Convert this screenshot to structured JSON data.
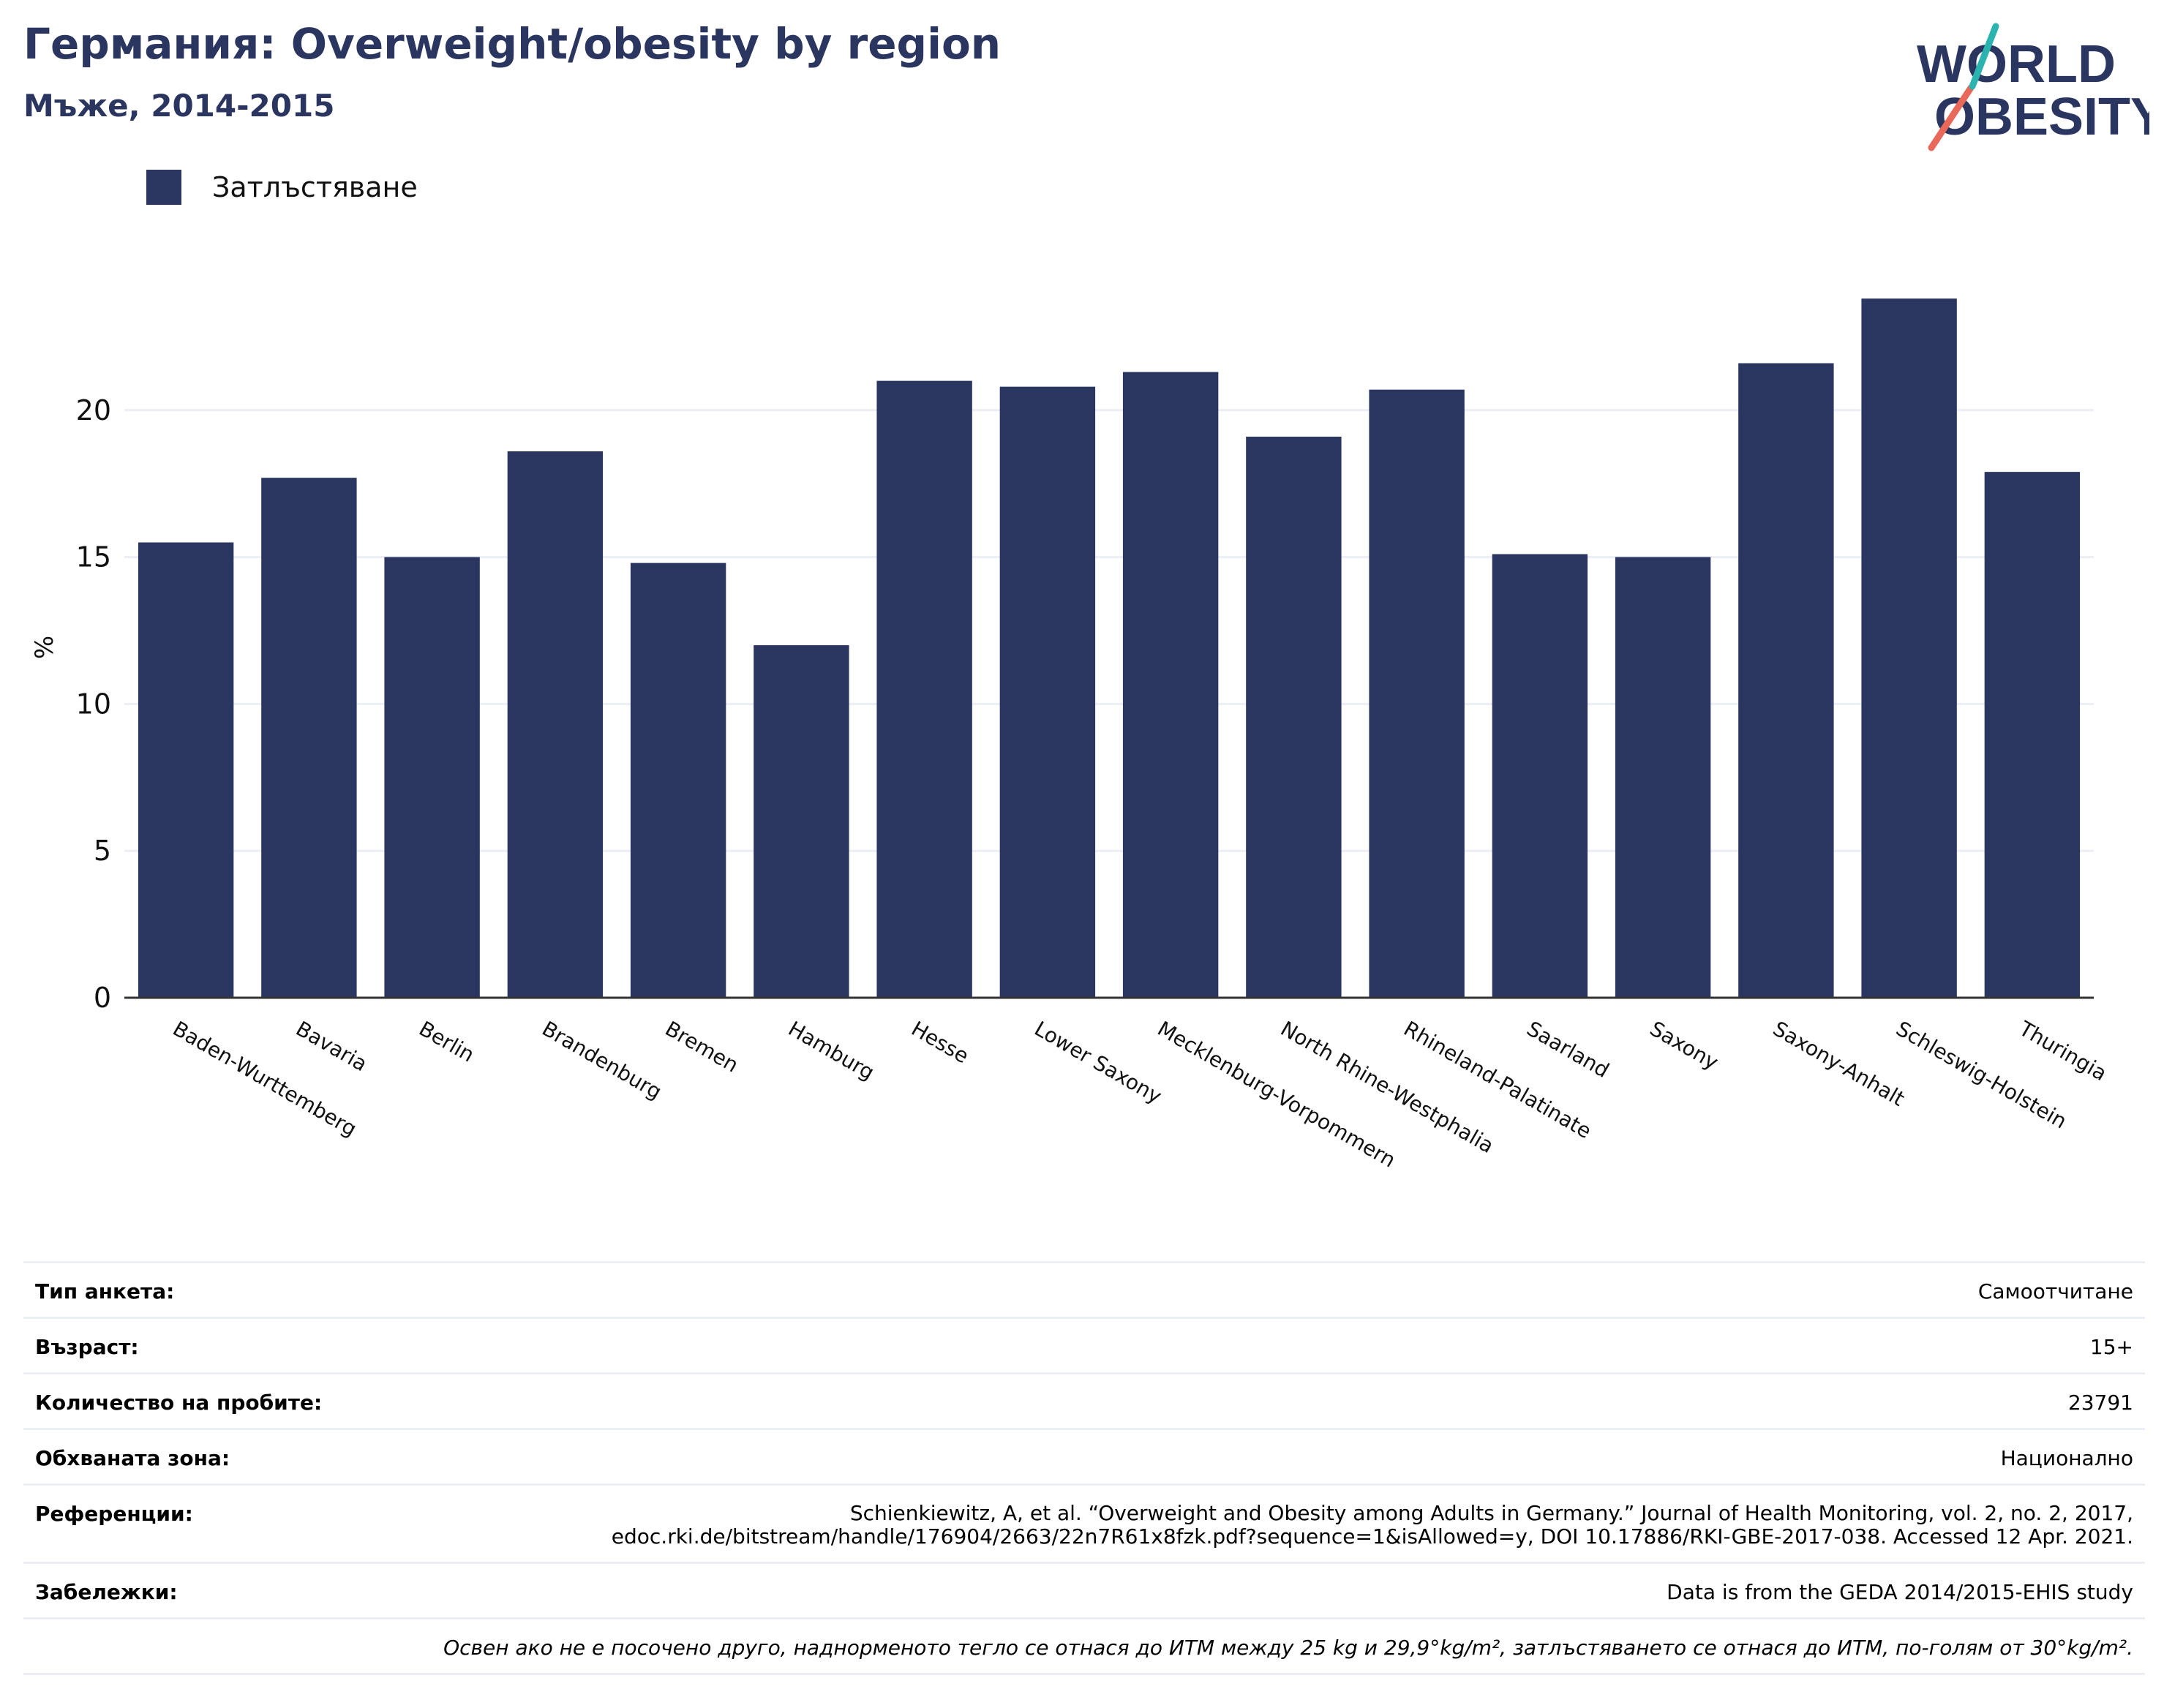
{
  "header": {
    "title": "Германия: Overweight/obesity by region",
    "subtitle": "Мъже, 2014-2015"
  },
  "logo": {
    "line1": "WORLD",
    "line2": "OBESITY",
    "colors": {
      "text": "#2a3560",
      "accent_teal": "#2bb3b0",
      "accent_red": "#e8685a"
    }
  },
  "legend": {
    "label": "Затлъстяване",
    "color": "#2a3560"
  },
  "chart_data": {
    "type": "bar",
    "categories": [
      "Baden-Wurttemberg",
      "Bavaria",
      "Berlin",
      "Brandenburg",
      "Bremen",
      "Hamburg",
      "Hesse",
      "Lower Saxony",
      "Mecklenburg-Vorpommern",
      "North Rhine-Westphalia",
      "Rhineland-Palatinate",
      "Saarland",
      "Saxony",
      "Saxony-Anhalt",
      "Schleswig-Holstein",
      "Thuringia"
    ],
    "series": [
      {
        "name": "Затлъстяване",
        "values": [
          15.5,
          17.7,
          15.0,
          18.6,
          14.8,
          12.0,
          21.0,
          20.8,
          21.3,
          19.1,
          20.7,
          15.1,
          15.0,
          21.6,
          23.8,
          17.9
        ],
        "color": "#2a3560"
      }
    ],
    "ylabel": "%",
    "ylim": [
      0,
      25
    ],
    "yticks": [
      0,
      5,
      10,
      15,
      20
    ],
    "grid": true,
    "legend_position": "top-left"
  },
  "info": {
    "rows": [
      {
        "key": "Тип анкета:",
        "value": "Самоотчитане"
      },
      {
        "key": "Възраст:",
        "value": "15+"
      },
      {
        "key": "Количество на пробите:",
        "value": "23791"
      },
      {
        "key": "Обхваната зона:",
        "value": "Национално"
      },
      {
        "key": "Референции:",
        "value": "Schienkiewitz, A, et al. “Overweight and Obesity among Adults in Germany.” Journal of Health Monitoring, vol. 2, no. 2, 2017, edoc.rki.de/bitstream/handle/176904/2663/22n7R61x8fzk.pdf?sequence=1&isAllowed=y, DOI 10.17886/RKI-GBE-2017-038. Accessed 12 Apr. 2021."
      },
      {
        "key": "Забележки:",
        "value": "Data is from the GEDA 2014/2015-EHIS study"
      }
    ],
    "note": "Освен ако не е посочено друго, наднорменото тегло се отнася до ИТМ между 25 kg и 29,9°kg/m², затлъстяването се отнася до ИТМ, по-голям от 30°kg/m²."
  }
}
